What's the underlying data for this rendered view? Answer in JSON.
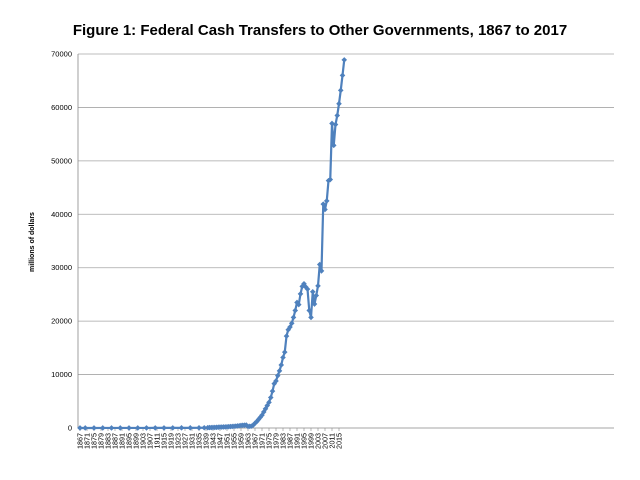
{
  "chart_data": {
    "type": "line",
    "title": "Figure 1: Federal Cash Transfers to Other Governments, 1867 to 2017",
    "ylabel": "millions of dollars",
    "xlabel": "",
    "ylim": [
      0,
      70000
    ],
    "xlim": [
      1867,
      2017
    ],
    "yticks": [
      0,
      10000,
      20000,
      30000,
      40000,
      50000,
      60000,
      70000
    ],
    "xticks": [
      1867,
      1871,
      1875,
      1879,
      1883,
      1887,
      1891,
      1895,
      1899,
      1903,
      1907,
      1911,
      1915,
      1919,
      1923,
      1927,
      1931,
      1935,
      1939,
      1943,
      1947,
      1951,
      1955,
      1959,
      1963,
      1967,
      1971,
      1975,
      1979,
      1983,
      1987,
      1991,
      1995,
      1999,
      2003,
      2007,
      2011,
      2015
    ],
    "grid": "horizontal",
    "marker": "diamond",
    "color": "#4f81bd",
    "series_points": [
      [
        1867,
        5
      ],
      [
        1870,
        6
      ],
      [
        1875,
        6
      ],
      [
        1880,
        7
      ],
      [
        1885,
        8
      ],
      [
        1890,
        8
      ],
      [
        1895,
        9
      ],
      [
        1900,
        10
      ],
      [
        1905,
        12
      ],
      [
        1910,
        18
      ],
      [
        1915,
        20
      ],
      [
        1920,
        25
      ],
      [
        1925,
        28
      ],
      [
        1930,
        30
      ],
      [
        1935,
        35
      ],
      [
        1938,
        45
      ],
      [
        1940,
        60
      ],
      [
        1941,
        80
      ],
      [
        1942,
        90
      ],
      [
        1943,
        100
      ],
      [
        1944,
        110
      ],
      [
        1945,
        120
      ],
      [
        1946,
        150
      ],
      [
        1947,
        170
      ],
      [
        1948,
        180
      ],
      [
        1949,
        190
      ],
      [
        1950,
        200
      ],
      [
        1951,
        220
      ],
      [
        1952,
        250
      ],
      [
        1953,
        270
      ],
      [
        1954,
        290
      ],
      [
        1955,
        310
      ],
      [
        1956,
        350
      ],
      [
        1957,
        380
      ],
      [
        1958,
        420
      ],
      [
        1959,
        480
      ],
      [
        1960,
        500
      ],
      [
        1961,
        520
      ],
      [
        1962,
        550
      ],
      [
        1963,
        300
      ],
      [
        1964,
        320
      ],
      [
        1965,
        350
      ],
      [
        1966,
        550
      ],
      [
        1967,
        900
      ],
      [
        1968,
        1200
      ],
      [
        1969,
        1600
      ],
      [
        1970,
        2000
      ],
      [
        1971,
        2400
      ],
      [
        1972,
        3000
      ],
      [
        1973,
        3600
      ],
      [
        1974,
        4200
      ],
      [
        1975,
        4800
      ],
      [
        1976,
        5700
      ],
      [
        1977,
        6900
      ],
      [
        1978,
        8300
      ],
      [
        1979,
        8800
      ],
      [
        1980,
        9800
      ],
      [
        1981,
        10700
      ],
      [
        1982,
        11800
      ],
      [
        1983,
        13200
      ],
      [
        1984,
        14200
      ],
      [
        1985,
        17200
      ],
      [
        1986,
        18400
      ],
      [
        1987,
        18900
      ],
      [
        1988,
        19600
      ],
      [
        1989,
        20700
      ],
      [
        1990,
        22000
      ],
      [
        1991,
        23500
      ],
      [
        1992,
        23100
      ],
      [
        1993,
        25100
      ],
      [
        1994,
        26500
      ],
      [
        1995,
        27000
      ],
      [
        1996,
        26400
      ],
      [
        1997,
        26000
      ],
      [
        1998,
        22000
      ],
      [
        1999,
        20700
      ],
      [
        2000,
        25500
      ],
      [
        2001,
        23200
      ],
      [
        2002,
        24800
      ],
      [
        2003,
        26600
      ],
      [
        2004,
        30600
      ],
      [
        2005,
        29400
      ],
      [
        2006,
        41900
      ],
      [
        2007,
        40900
      ],
      [
        2008,
        42500
      ],
      [
        2009,
        46300
      ],
      [
        2010,
        46500
      ],
      [
        2011,
        57000
      ],
      [
        2012,
        52900
      ],
      [
        2013,
        56800
      ],
      [
        2014,
        58500
      ],
      [
        2015,
        60700
      ],
      [
        2016,
        63200
      ],
      [
        2017,
        66000
      ],
      [
        2018,
        68900
      ]
    ]
  }
}
